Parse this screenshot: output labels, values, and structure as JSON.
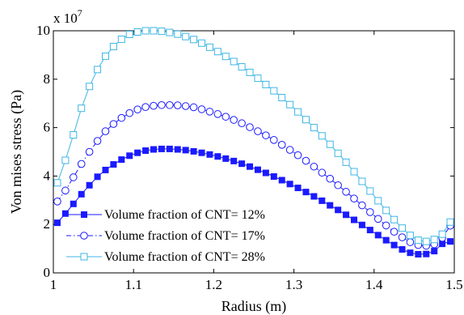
{
  "chart_data": {
    "type": "line",
    "xlabel": "Radius (m)",
    "ylabel": "Von mises stress (Pa)",
    "y_multiplier_label": "x 10",
    "y_multiplier_exponent": "7",
    "xlim": [
      1.0,
      1.5
    ],
    "ylim": [
      0,
      10
    ],
    "xticks": [
      1.0,
      1.1,
      1.2,
      1.3,
      1.4,
      1.5
    ],
    "xtick_labels": [
      "1",
      "1.1",
      "1.2",
      "1.3",
      "1.4",
      "1.5"
    ],
    "yticks": [
      0,
      2,
      4,
      6,
      8,
      10
    ],
    "ytick_labels": [
      "0",
      "2",
      "4",
      "6",
      "8",
      "10"
    ],
    "grid": false,
    "legend_position": "lower-left",
    "x": [
      1.005,
      1.015,
      1.025,
      1.035,
      1.045,
      1.055,
      1.065,
      1.075,
      1.085,
      1.095,
      1.105,
      1.115,
      1.125,
      1.135,
      1.145,
      1.155,
      1.165,
      1.175,
      1.185,
      1.195,
      1.205,
      1.215,
      1.225,
      1.235,
      1.245,
      1.255,
      1.265,
      1.275,
      1.285,
      1.295,
      1.305,
      1.315,
      1.325,
      1.335,
      1.345,
      1.355,
      1.365,
      1.375,
      1.385,
      1.395,
      1.405,
      1.415,
      1.425,
      1.435,
      1.445,
      1.455,
      1.465,
      1.475,
      1.485,
      1.495
    ],
    "series": [
      {
        "name": "Volume fraction of CNT= 12%",
        "marker": "filled-square",
        "line_style": "solid",
        "color": "#1a1aff",
        "values": [
          2.07,
          2.45,
          2.85,
          3.25,
          3.62,
          3.97,
          4.25,
          4.48,
          4.68,
          4.84,
          4.96,
          5.05,
          5.1,
          5.12,
          5.12,
          5.1,
          5.07,
          5.02,
          4.96,
          4.89,
          4.81,
          4.72,
          4.62,
          4.51,
          4.39,
          4.26,
          4.13,
          3.98,
          3.83,
          3.67,
          3.51,
          3.34,
          3.16,
          2.98,
          2.79,
          2.6,
          2.4,
          2.19,
          1.98,
          1.77,
          1.56,
          1.35,
          1.15,
          0.97,
          0.83,
          0.77,
          0.78,
          0.9,
          1.2,
          1.3
        ]
      },
      {
        "name": "Volume fraction of CNT= 17%",
        "marker": "open-circle",
        "line_style": "dash-dot",
        "color": "#1a1aff",
        "values": [
          2.95,
          3.4,
          3.95,
          4.5,
          5.0,
          5.45,
          5.85,
          6.15,
          6.4,
          6.6,
          6.75,
          6.85,
          6.9,
          6.93,
          6.93,
          6.92,
          6.89,
          6.84,
          6.76,
          6.66,
          6.56,
          6.45,
          6.32,
          6.18,
          6.02,
          5.85,
          5.68,
          5.49,
          5.29,
          5.08,
          4.86,
          4.63,
          4.39,
          4.14,
          3.89,
          3.62,
          3.35,
          3.07,
          2.79,
          2.51,
          2.23,
          1.96,
          1.7,
          1.47,
          1.27,
          1.15,
          1.12,
          1.18,
          1.45,
          1.95
        ]
      },
      {
        "name": "Volume fraction of CNT= 28%",
        "marker": "open-square",
        "line_style": "solid",
        "color": "#3fb6e4",
        "values": [
          3.72,
          4.65,
          5.7,
          6.8,
          7.7,
          8.4,
          8.95,
          9.35,
          9.65,
          9.85,
          9.95,
          10.0,
          10.0,
          9.98,
          9.93,
          9.86,
          9.76,
          9.64,
          9.49,
          9.32,
          9.14,
          8.94,
          8.73,
          8.51,
          8.28,
          8.04,
          7.78,
          7.52,
          7.24,
          6.95,
          6.65,
          6.33,
          6.0,
          5.66,
          5.31,
          4.94,
          4.57,
          4.18,
          3.78,
          3.38,
          2.98,
          2.58,
          2.2,
          1.85,
          1.55,
          1.35,
          1.3,
          1.38,
          1.6,
          2.1
        ]
      }
    ]
  }
}
